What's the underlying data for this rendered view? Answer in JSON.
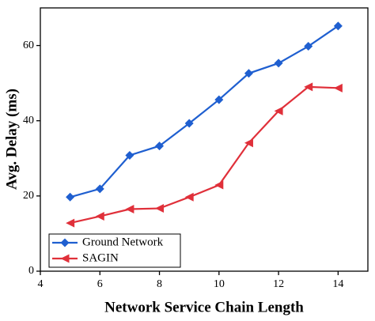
{
  "chart_data": {
    "type": "line",
    "x_label": "Network Service Chain Length",
    "y_label": "Avg. Delay (ms)",
    "x": [
      5,
      6,
      7,
      8,
      9,
      10,
      11,
      12,
      13,
      14
    ],
    "series": [
      {
        "name": "Ground Network",
        "color": "#1f5fd0",
        "marker": "diamond",
        "values": [
          19.7,
          21.9,
          30.8,
          33.3,
          39.3,
          45.6,
          52.6,
          55.3,
          59.8,
          65.2
        ]
      },
      {
        "name": "SAGIN",
        "color": "#e0303a",
        "marker": "triangle-left",
        "values": [
          12.8,
          14.6,
          16.5,
          16.7,
          19.7,
          22.9,
          34.1,
          42.6,
          49.0,
          48.7
        ]
      }
    ],
    "xlim": [
      4,
      15
    ],
    "xticks": [
      4,
      6,
      8,
      10,
      12,
      14
    ],
    "ylim": [
      0,
      70
    ],
    "yticks": [
      0,
      20,
      40,
      60
    ],
    "legend": "lower-left"
  }
}
